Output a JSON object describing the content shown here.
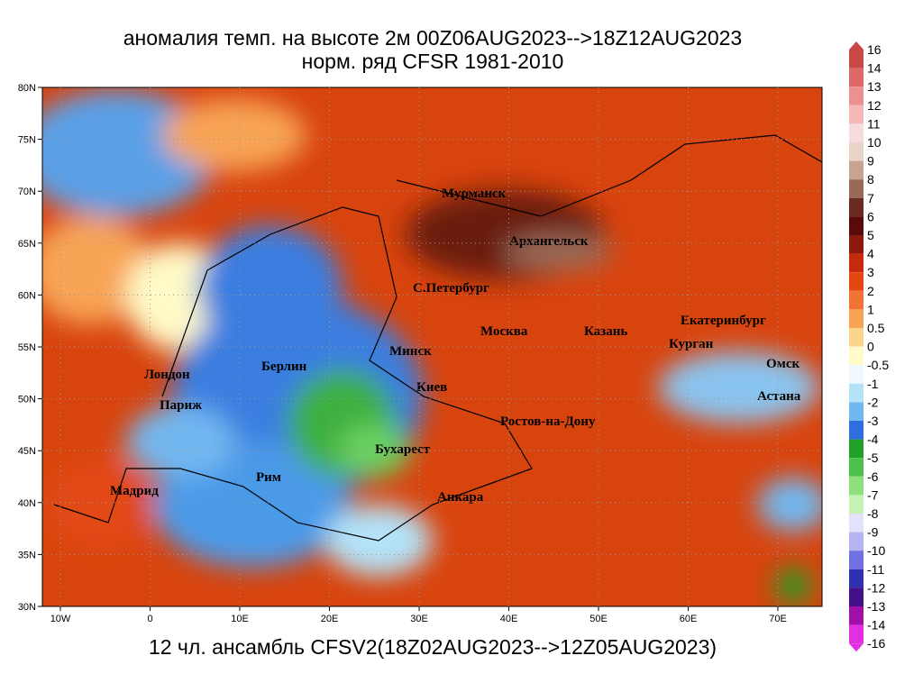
{
  "title": [
    "аномалия темп. на высоте 2м 00Z06AUG2023-->18Z12AUG2023",
    "норм. ряд CFSR 1981-2010"
  ],
  "footer": "12 чл. ансамбль CFSV2(18Z02AUG2023-->12Z05AUG2023)",
  "lat_ticks": [
    "80N",
    "75N",
    "70N",
    "65N",
    "60N",
    "55N",
    "50N",
    "45N",
    "40N",
    "35N",
    "30N"
  ],
  "lon_ticks": [
    "10W",
    "0",
    "10E",
    "20E",
    "30E",
    "40E",
    "50E",
    "60E",
    "70E"
  ],
  "cities": [
    "Мурманск",
    "Архангельск",
    "С.Петербург",
    "Москва",
    "Казань",
    "Екатеринбург",
    "Курган",
    "Омск",
    "Астана",
    "Минск",
    "Берлин",
    "Лондон",
    "Париж",
    "Киев",
    "Ростов-на-Дону",
    "Бухарест",
    "Рим",
    "Мадрид",
    "Анкара"
  ],
  "colorbar": {
    "labels": [
      16,
      14,
      13,
      12,
      11,
      10,
      9,
      8,
      7,
      6,
      5,
      4,
      3,
      2,
      1,
      0.5,
      0,
      -0.5,
      -1,
      -2,
      -3,
      -4,
      -5,
      -6,
      -7,
      -8,
      -9,
      -10,
      -11,
      -12,
      -13,
      -14,
      -16
    ],
    "colors": [
      "#c84848",
      "#dc6868",
      "#ec9090",
      "#f4b8b8",
      "#f8dcdc",
      "#e8d4c8",
      "#c8a490",
      "#9a6a58",
      "#6a2a20",
      "#5a0a08",
      "#8c1a0c",
      "#c42a0c",
      "#e24812",
      "#f27434",
      "#f8a456",
      "#fcd48a",
      "#fffac8",
      "#eef8ff",
      "#b4e2f8",
      "#72b8f0",
      "#2e6ede",
      "#20a028",
      "#4cc04c",
      "#8ee07e",
      "#c4f2b6",
      "#e2e2fa",
      "#b4b4f0",
      "#7070e0",
      "#3030b0",
      "#441088",
      "#a010a8",
      "#e030e0"
    ]
  }
}
